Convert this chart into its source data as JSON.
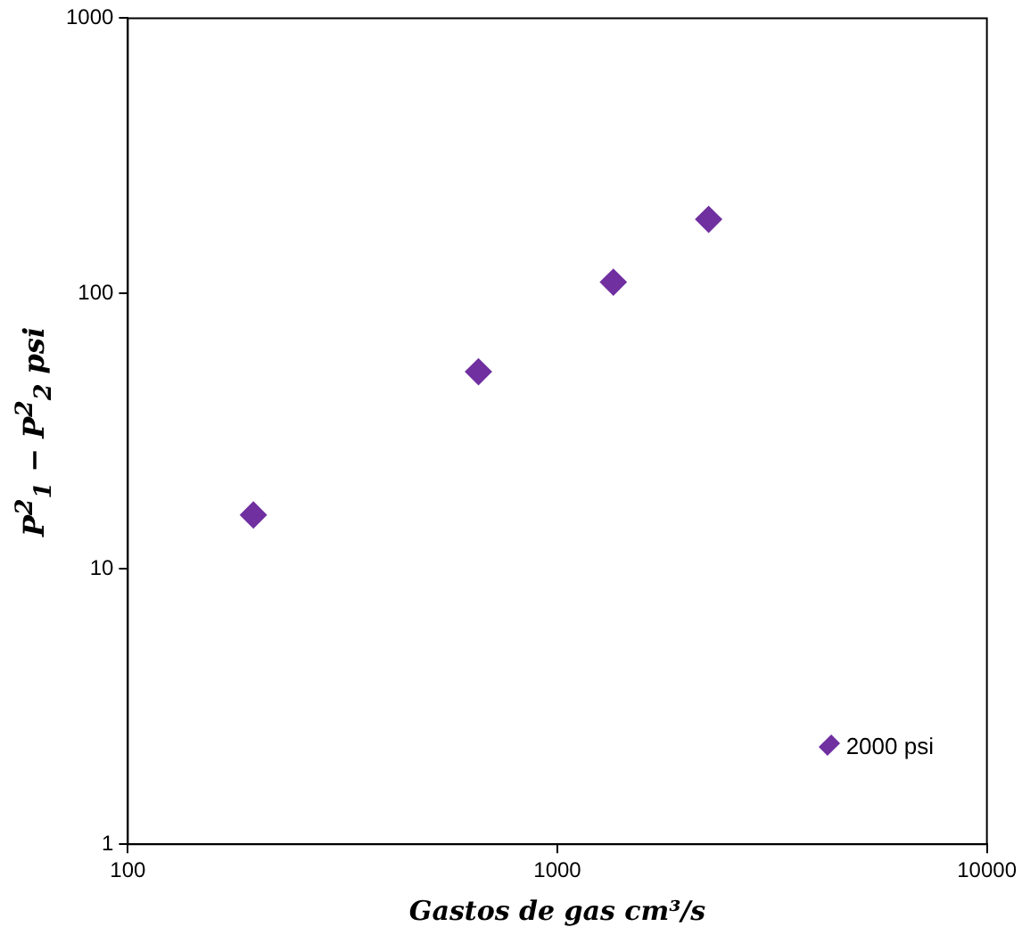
{
  "chart_data": {
    "type": "scatter",
    "xlabel": "Gastos de gas cm³/s",
    "ylabel": "P$^{2}$$_{1}$ − P$^{2}$$_{2}$  psi",
    "x": [
      196,
      655,
      1350,
      2250
    ],
    "series": [
      {
        "name": "2000 psi",
        "color": "#7030a0",
        "values": [
          15.7,
          52,
          110,
          186
        ]
      }
    ],
    "xlim": [
      100,
      10000
    ],
    "ylim": [
      1,
      1000
    ],
    "xticks": [
      100,
      1000,
      10000
    ],
    "yticks": [
      1,
      10,
      100,
      1000
    ],
    "log": "xy",
    "grid": false,
    "legend": "bottom right",
    "marker": "diamond"
  }
}
